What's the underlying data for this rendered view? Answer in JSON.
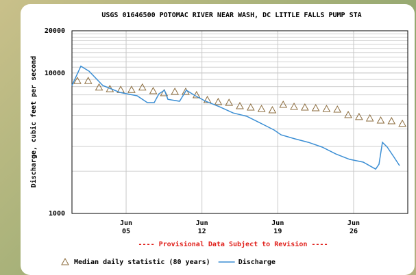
{
  "chart_data": {
    "type": "line",
    "title": "USGS 01646500 POTOMAC RIVER NEAR WASH, DC LITTLE FALLS PUMP STA",
    "y_label": "Discharge, cubic feet per second",
    "annotation": "---- Provisional Data Subject to Revision ----",
    "ylog": true,
    "grid": true,
    "ylim": [
      1000,
      20000
    ],
    "yticks": [
      1000,
      10000,
      20000
    ],
    "yminor": [
      2000,
      3000,
      4000,
      5000,
      6000,
      7000,
      8000,
      9000,
      11000,
      12000,
      13000,
      14000,
      15000,
      16000,
      17000,
      18000,
      19000
    ],
    "xlim": [
      0,
      31
    ],
    "xticks": [
      {
        "value": 5,
        "label": "Jun",
        "sublabel": "05"
      },
      {
        "value": 12,
        "label": "Jun",
        "sublabel": "12"
      },
      {
        "value": 19,
        "label": "Jun",
        "sublabel": "19"
      },
      {
        "value": 26,
        "label": "Jun",
        "sublabel": "26"
      }
    ],
    "series": [
      {
        "name": "Median daily statistic (80 years)",
        "color": "#8b6b3c",
        "marker": "triangle",
        "x": [
          0.5,
          1.5,
          2.5,
          3.5,
          4.5,
          5.5,
          6.5,
          7.5,
          8.5,
          9.5,
          10.5,
          11.5,
          12.5,
          13.5,
          14.5,
          15.5,
          16.5,
          17.5,
          18.5,
          19.5,
          20.5,
          21.5,
          22.5,
          23.5,
          24.5,
          25.5,
          26.5,
          27.5,
          28.5,
          29.5,
          30.5
        ],
        "values": [
          8800,
          8800,
          7900,
          7700,
          7600,
          7600,
          7900,
          7450,
          7200,
          7370,
          7370,
          6970,
          6440,
          6230,
          6150,
          5820,
          5690,
          5560,
          5440,
          5950,
          5760,
          5690,
          5630,
          5560,
          5500,
          5030,
          4870,
          4760,
          4600,
          4550,
          4360
        ]
      },
      {
        "name": "Discharge",
        "color": "#3b8ed4",
        "x": [
          0,
          0.82,
          1.58,
          2.85,
          4.43,
          6.01,
          6.96,
          7.59,
          8.03,
          8.54,
          8.86,
          9.93,
          10.56,
          11.39,
          12.34,
          13.6,
          14.87,
          16.13,
          17.4,
          18.66,
          19.3,
          20.56,
          21.83,
          23.09,
          24.36,
          25.62,
          26.89,
          28.03,
          28.34,
          28.66,
          29.1,
          29.74,
          30.24
        ],
        "values": [
          8150,
          11200,
          10300,
          8150,
          7280,
          6890,
          6160,
          6160,
          7120,
          7540,
          6500,
          6300,
          7540,
          6890,
          6300,
          5760,
          5200,
          4920,
          4400,
          3930,
          3630,
          3400,
          3210,
          2970,
          2650,
          2430,
          2320,
          2070,
          2240,
          3210,
          2970,
          2510,
          2190
        ]
      }
    ]
  }
}
